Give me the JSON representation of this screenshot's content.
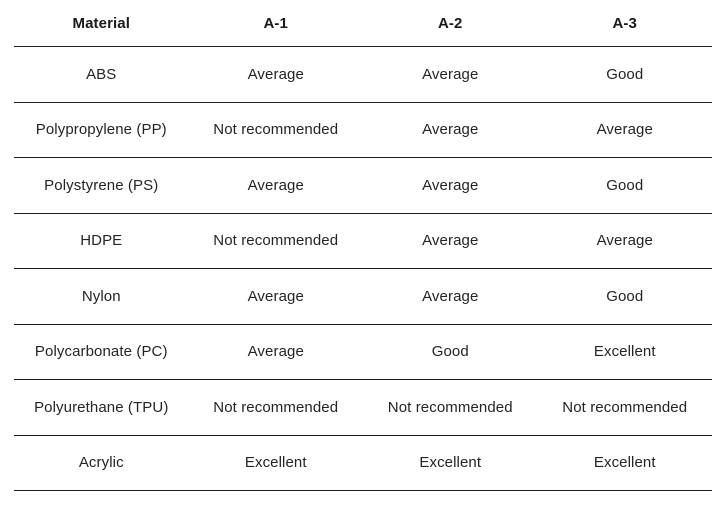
{
  "colors": {
    "background": "#ffffff",
    "text": "#242424",
    "header_text": "#1a1a1a",
    "row_divider": "#1f1f1f"
  },
  "chart_data": {
    "type": "table",
    "title": "",
    "columns": [
      "Material",
      "A-1",
      "A-2",
      "A-3"
    ],
    "rows": [
      {
        "material": "ABS",
        "values": [
          "Average",
          "Average",
          "Good"
        ]
      },
      {
        "material": "Polypropylene (PP)",
        "values": [
          "Not recommended",
          "Average",
          "Average"
        ]
      },
      {
        "material": "Polystyrene (PS)",
        "values": [
          "Average",
          "Average",
          "Good"
        ]
      },
      {
        "material": "HDPE",
        "values": [
          "Not recommended",
          "Average",
          "Average"
        ]
      },
      {
        "material": "Nylon",
        "values": [
          "Average",
          "Average",
          "Good"
        ]
      },
      {
        "material": "Polycarbonate (PC)",
        "values": [
          "Average",
          "Good",
          "Excellent"
        ]
      },
      {
        "material": "Polyurethane (TPU)",
        "values": [
          "Not recommended",
          "Not recommended",
          "Not recommended"
        ]
      },
      {
        "material": "Acrylic",
        "values": [
          "Excellent",
          "Excellent",
          "Excellent"
        ]
      }
    ]
  }
}
